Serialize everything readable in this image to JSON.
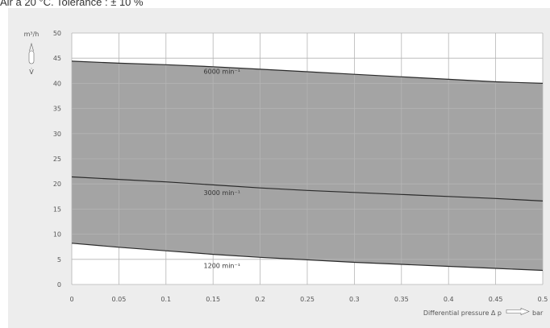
{
  "header": {
    "note": "Air à 20 °C. Tolérance : ± 10 %"
  },
  "chart_data": {
    "type": "area",
    "y_unit": "m³/h",
    "y_symbol": "V̇",
    "xlabel": "Differential pressure Δ p",
    "x_unit": "bar",
    "xlim": [
      0,
      0.5
    ],
    "ylim": [
      0,
      50
    ],
    "x_ticks": [
      "0",
      "0.05",
      "0.1",
      "0.15",
      "0.2",
      "0.25",
      "0.3",
      "0.35",
      "0.4",
      "0.45",
      "0.5"
    ],
    "y_ticks": [
      "0",
      "5",
      "10",
      "15",
      "20",
      "25",
      "30",
      "35",
      "40",
      "45",
      "50"
    ],
    "grid": true,
    "band_between": [
      "6000 min⁻¹",
      "1200 min⁻¹"
    ],
    "colors": {
      "band": "#a4a4a4",
      "line": "#2a2a2a",
      "panel": "#ededed",
      "plot": "#ffffff",
      "grid": "#b5b5b5"
    },
    "series": [
      {
        "name": "6000 min⁻¹",
        "label": "6000 min⁻¹",
        "label_x": 0.14,
        "label_y": 41.9,
        "x": [
          0,
          0.05,
          0.1,
          0.15,
          0.2,
          0.25,
          0.3,
          0.35,
          0.4,
          0.45,
          0.5
        ],
        "y": [
          44.4,
          44.0,
          43.7,
          43.3,
          42.8,
          42.3,
          41.8,
          41.3,
          40.8,
          40.3,
          40.0
        ]
      },
      {
        "name": "3000 min⁻¹",
        "label": "3000 min⁻¹",
        "label_x": 0.14,
        "label_y": 17.8,
        "x": [
          0,
          0.05,
          0.1,
          0.15,
          0.2,
          0.25,
          0.3,
          0.35,
          0.4,
          0.45,
          0.5
        ],
        "y": [
          21.4,
          20.9,
          20.4,
          19.8,
          19.2,
          18.7,
          18.3,
          17.9,
          17.5,
          17.1,
          16.6
        ]
      },
      {
        "name": "1200 min⁻¹",
        "label": "1200 min⁻¹",
        "label_x": 0.14,
        "label_y": 3.3,
        "x": [
          0,
          0.05,
          0.1,
          0.15,
          0.2,
          0.25,
          0.3,
          0.35,
          0.4,
          0.45,
          0.5
        ],
        "y": [
          8.2,
          7.4,
          6.7,
          6.0,
          5.4,
          4.9,
          4.4,
          4.0,
          3.6,
          3.2,
          2.8
        ]
      }
    ]
  }
}
